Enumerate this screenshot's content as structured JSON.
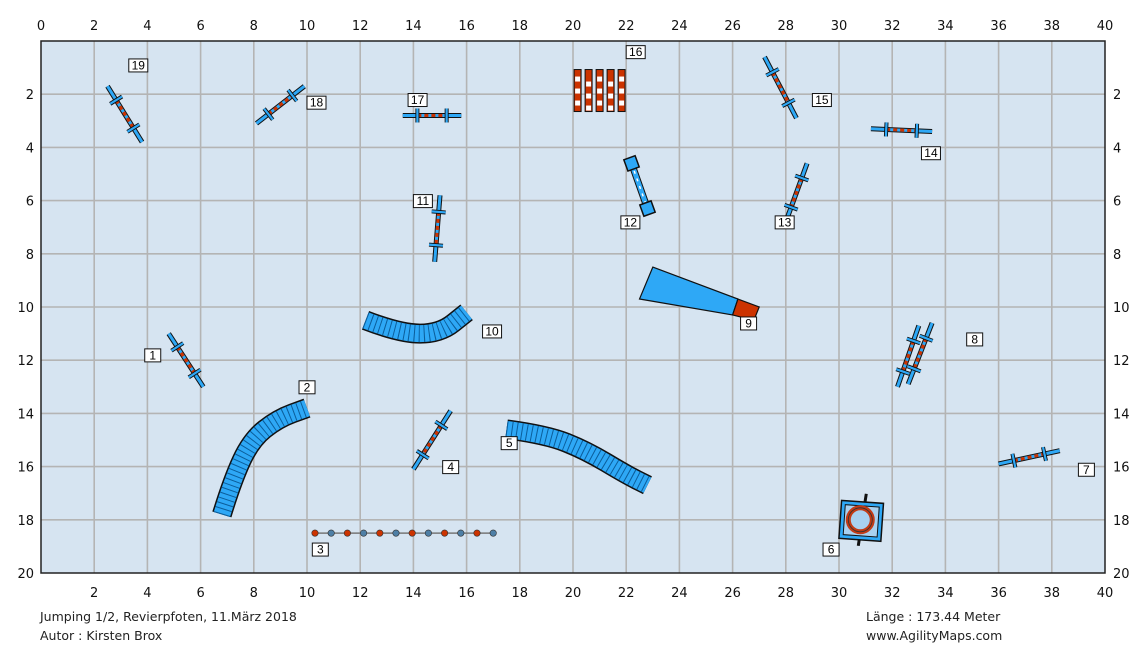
{
  "field": {
    "x_range": [
      0,
      40
    ],
    "y_range": [
      0,
      20
    ],
    "grid_step": 2,
    "x_ticks_top": [
      "0",
      "2",
      "4",
      "6",
      "8",
      "10",
      "12",
      "14",
      "16",
      "18",
      "20",
      "22",
      "24",
      "26",
      "28",
      "30",
      "32",
      "34",
      "36",
      "38",
      "40"
    ],
    "x_ticks_bottom": [
      "2",
      "4",
      "6",
      "8",
      "10",
      "12",
      "14",
      "16",
      "18",
      "20",
      "22",
      "24",
      "26",
      "28",
      "30",
      "32",
      "34",
      "36",
      "38",
      "40"
    ],
    "y_ticks_left": [
      "2",
      "4",
      "6",
      "8",
      "10",
      "12",
      "14",
      "16",
      "18",
      "20"
    ],
    "y_ticks_right": [
      "2",
      "4",
      "6",
      "8",
      "10",
      "12",
      "14",
      "16",
      "18",
      "20"
    ],
    "background_color": "#d6e4f1",
    "grid_color": "#b4b4b4",
    "obstacle_color": "#2ea8f6",
    "accent_color": "#cc3300"
  },
  "obstacles": [
    {
      "num": "1",
      "type": "jump",
      "x1": 4.8,
      "y1": 11.0,
      "x2": 6.1,
      "y2": 13.0,
      "lx": 3.9,
      "ly": 11.8
    },
    {
      "num": "2",
      "type": "tunnel",
      "path": [
        [
          6.8,
          17.8
        ],
        [
          7.2,
          16.5
        ],
        [
          7.9,
          15.0
        ],
        [
          8.9,
          14.2
        ],
        [
          10.0,
          13.8
        ]
      ],
      "lx": 9.7,
      "ly": 13.0
    },
    {
      "num": "3",
      "type": "weave",
      "y": 18.5,
      "x_start": 10.3,
      "x_end": 17.0,
      "poles": 12,
      "lx": 10.2,
      "ly": 19.1
    },
    {
      "num": "4",
      "type": "jump",
      "x1": 15.4,
      "y1": 13.9,
      "x2": 14.0,
      "y2": 16.1,
      "lx": 15.1,
      "ly": 16.0
    },
    {
      "num": "5",
      "type": "tunnel",
      "path": [
        [
          17.5,
          14.6
        ],
        [
          19.0,
          14.8
        ],
        [
          20.5,
          15.4
        ],
        [
          22.0,
          16.3
        ],
        [
          22.8,
          16.7
        ]
      ],
      "lx": 17.3,
      "ly": 15.1
    },
    {
      "num": "6",
      "type": "tire",
      "x": 30.8,
      "y": 18.0,
      "lx": 29.4,
      "ly": 19.1
    },
    {
      "num": "7",
      "type": "jump",
      "x1": 36.0,
      "y1": 15.9,
      "x2": 38.3,
      "y2": 15.4,
      "lx": 39.0,
      "ly": 16.1
    },
    {
      "num": "8",
      "type": "double",
      "xa1": 33.0,
      "ya1": 10.7,
      "xa2": 32.2,
      "ya2": 13.0,
      "xb1": 33.5,
      "yb1": 10.6,
      "xb2": 32.6,
      "yb2": 12.9,
      "lx": 34.8,
      "ly": 11.2
    },
    {
      "num": "9",
      "type": "chute",
      "lx": 26.3,
      "ly": 10.6
    },
    {
      "num": "10",
      "type": "tunnel",
      "path": [
        [
          12.2,
          10.5
        ],
        [
          13.5,
          11.0
        ],
        [
          15.0,
          11.0
        ],
        [
          16.0,
          10.2
        ]
      ],
      "lx": 16.6,
      "ly": 10.9
    },
    {
      "num": "11",
      "type": "jump",
      "x1": 15.0,
      "y1": 5.8,
      "x2": 14.8,
      "y2": 8.3,
      "lx": 14.0,
      "ly": 6.0
    },
    {
      "num": "12",
      "type": "table_post",
      "x1": 22.2,
      "y1": 4.6,
      "x2": 22.8,
      "y2": 6.3,
      "lx": 21.8,
      "ly": 6.8
    },
    {
      "num": "13",
      "type": "jump",
      "x1": 28.8,
      "y1": 4.6,
      "x2": 28.0,
      "y2": 6.8,
      "lx": 27.6,
      "ly": 6.8
    },
    {
      "num": "14",
      "type": "jump",
      "x1": 31.2,
      "y1": 3.3,
      "x2": 33.5,
      "y2": 3.4,
      "lx": 33.1,
      "ly": 4.2
    },
    {
      "num": "15",
      "type": "jump",
      "x1": 27.2,
      "y1": 0.6,
      "x2": 28.4,
      "y2": 2.9,
      "lx": 29.0,
      "ly": 2.2
    },
    {
      "num": "16",
      "type": "wall",
      "x": 21.0,
      "y": 1.9,
      "lx": 22.0,
      "ly": 0.4
    },
    {
      "num": "17",
      "type": "jump",
      "x1": 13.6,
      "y1": 2.8,
      "x2": 15.8,
      "y2": 2.8,
      "lx": 13.8,
      "ly": 2.2
    },
    {
      "num": "18",
      "type": "jump",
      "x1": 8.1,
      "y1": 3.1,
      "x2": 9.9,
      "y2": 1.7,
      "lx": 10.0,
      "ly": 2.3
    },
    {
      "num": "19",
      "type": "jump",
      "x1": 2.5,
      "y1": 1.7,
      "x2": 3.8,
      "y2": 3.8,
      "lx": 3.3,
      "ly": 0.9
    }
  ],
  "footer": {
    "title": "Jumping 1/2, Revierpfoten, 11.März 2018",
    "author": "Autor : Kirsten Brox",
    "length": "Länge : 173.44 Meter",
    "website": "www.AgilityMaps.com"
  }
}
